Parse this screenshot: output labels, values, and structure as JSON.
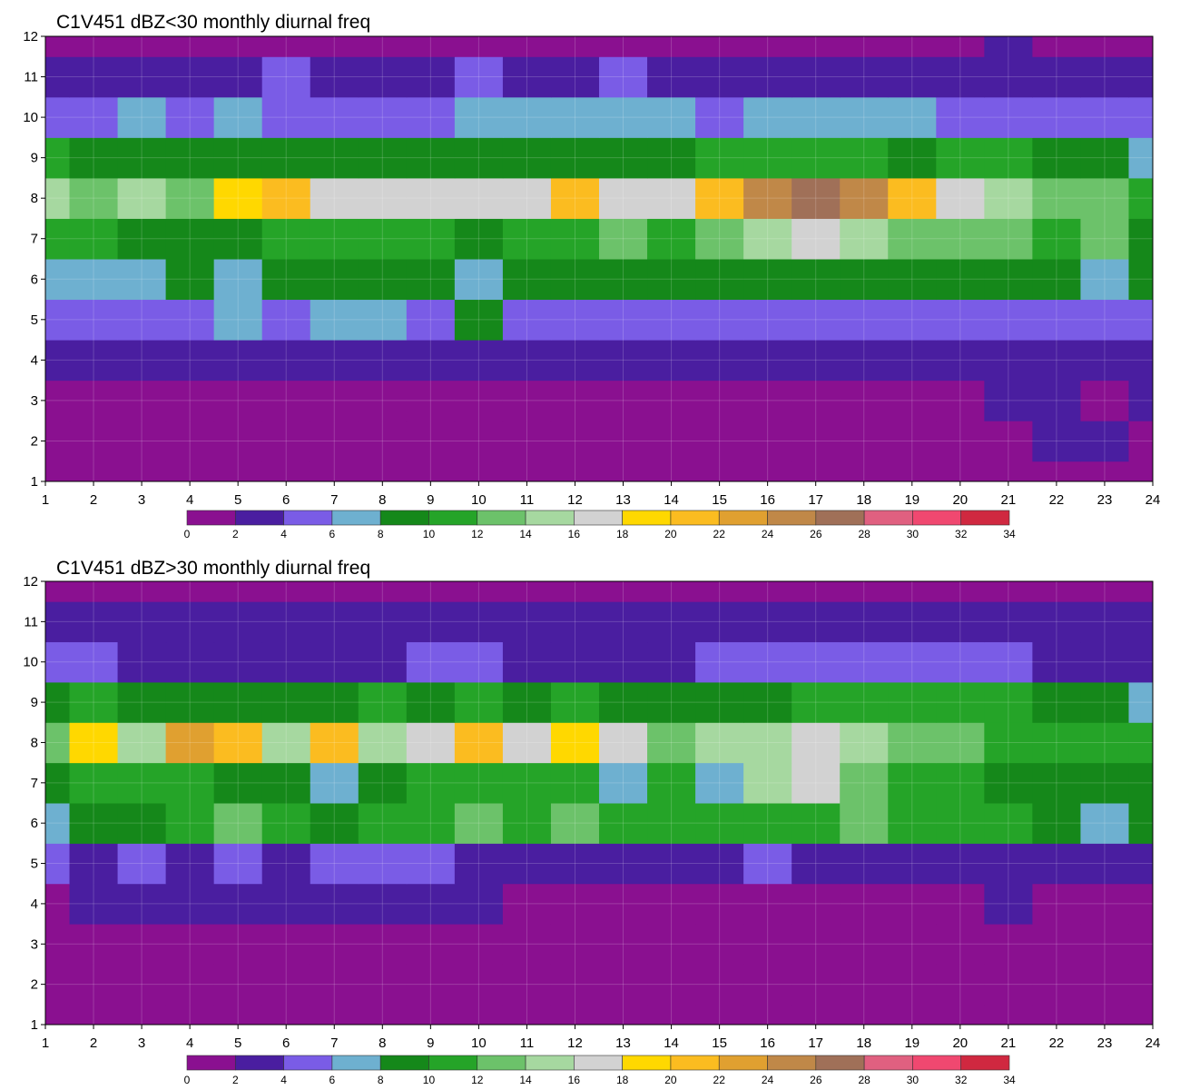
{
  "chart_data": [
    {
      "type": "heatmap",
      "title": "C1V451 dBZ<30 monthly diurnal freq",
      "xlabel": "",
      "ylabel": "",
      "x_ticks": [
        1,
        2,
        3,
        4,
        5,
        6,
        7,
        8,
        9,
        10,
        11,
        12,
        13,
        14,
        15,
        16,
        17,
        18,
        19,
        20,
        21,
        22,
        23,
        24
      ],
      "y_ticks": [
        1,
        2,
        3,
        4,
        5,
        6,
        7,
        8,
        9,
        10,
        11,
        12
      ],
      "xlim": [
        1,
        24
      ],
      "ylim": [
        1,
        12
      ],
      "grid": true,
      "colorbar": {
        "levels": [
          0,
          2,
          4,
          6,
          8,
          10,
          12,
          14,
          16,
          18,
          20,
          22,
          24,
          26,
          28,
          30,
          32,
          34
        ],
        "colors": [
          "#8a1090",
          "#4a1ea0",
          "#7a5ce6",
          "#6eb0d0",
          "#15881a",
          "#25a428",
          "#6cc26a",
          "#a6d8a0",
          "#d2d2d2",
          "#ffd800",
          "#fbbc20",
          "#e0a030",
          "#c08848",
          "#a07058",
          "#e06080",
          "#f04870",
          "#d02840"
        ]
      },
      "values": [
        [
          0,
          0,
          0,
          0,
          0,
          0,
          0,
          0,
          0,
          0,
          0,
          0,
          0,
          0,
          0,
          0,
          0,
          0,
          0,
          0,
          0,
          0,
          0,
          0
        ],
        [
          1,
          0,
          0,
          0,
          0,
          1,
          0,
          0,
          0,
          0,
          0,
          0,
          0,
          1,
          0,
          0,
          0,
          0,
          0,
          0,
          1,
          2,
          2,
          1
        ],
        [
          0,
          1,
          0,
          0,
          1,
          1,
          1,
          1,
          0,
          1,
          1,
          0,
          1,
          1,
          1,
          1,
          0,
          1,
          1,
          1,
          3,
          3,
          1,
          3
        ],
        [
          2,
          3,
          2,
          2,
          2,
          2,
          3,
          3,
          2,
          2,
          3,
          2,
          3,
          2,
          3,
          3,
          3,
          3,
          2,
          3,
          3,
          3,
          3,
          3
        ],
        [
          4,
          4,
          5,
          5,
          6,
          5,
          6,
          6,
          5,
          8,
          5,
          5,
          5,
          5,
          5,
          5,
          5,
          5,
          4,
          5,
          5,
          5,
          4,
          5
        ],
        [
          7,
          7,
          6,
          8,
          6,
          8,
          8,
          9,
          9,
          7,
          9,
          9,
          9,
          8,
          8,
          9,
          9,
          9,
          9,
          9,
          8,
          8,
          7,
          8
        ],
        [
          11,
          10,
          8,
          8,
          9,
          10,
          11,
          10,
          10,
          8,
          10,
          10,
          12,
          10,
          12,
          14,
          16,
          14,
          13,
          13,
          12,
          11,
          12,
          9
        ],
        [
          14,
          12,
          15,
          13,
          18,
          20,
          16,
          16,
          16,
          17,
          17,
          20,
          17,
          16,
          20,
          24,
          26,
          24,
          21,
          16,
          14,
          13,
          12,
          10
        ],
        [
          11,
          9,
          8,
          9,
          8,
          8,
          8,
          8,
          8,
          9,
          9,
          9,
          8,
          9,
          10,
          11,
          11,
          11,
          9,
          11,
          11,
          9,
          8,
          7
        ],
        [
          5,
          5,
          6,
          5,
          7,
          5,
          4,
          4,
          5,
          6,
          6,
          6,
          6,
          6,
          5,
          6,
          6,
          6,
          6,
          5,
          5,
          5,
          5,
          4
        ],
        [
          3,
          3,
          3,
          3,
          3,
          4,
          3,
          3,
          3,
          4,
          3,
          3,
          4,
          3,
          3,
          3,
          3,
          2,
          3,
          2,
          2,
          2,
          2,
          2
        ],
        [
          0,
          0,
          0,
          0,
          0,
          1,
          1,
          1,
          1,
          1,
          1,
          0,
          1,
          1,
          1,
          1,
          1,
          0,
          0,
          1,
          2,
          1,
          1,
          1
        ]
      ]
    },
    {
      "type": "heatmap",
      "title": "C1V451 dBZ>30 monthly diurnal freq",
      "xlabel": "",
      "ylabel": "",
      "x_ticks": [
        1,
        2,
        3,
        4,
        5,
        6,
        7,
        8,
        9,
        10,
        11,
        12,
        13,
        14,
        15,
        16,
        17,
        18,
        19,
        20,
        21,
        22,
        23,
        24
      ],
      "y_ticks": [
        1,
        2,
        3,
        4,
        5,
        6,
        7,
        8,
        9,
        10,
        11,
        12
      ],
      "xlim": [
        1,
        24
      ],
      "ylim": [
        1,
        12
      ],
      "grid": true,
      "colorbar": {
        "levels": [
          0,
          2,
          4,
          6,
          8,
          10,
          12,
          14,
          16,
          18,
          20,
          22,
          24,
          26,
          28,
          30,
          32,
          34
        ],
        "colors": [
          "#8a1090",
          "#4a1ea0",
          "#7a5ce6",
          "#6eb0d0",
          "#15881a",
          "#25a428",
          "#6cc26a",
          "#a6d8a0",
          "#d2d2d2",
          "#ffd800",
          "#fbbc20",
          "#e0a030",
          "#c08848",
          "#a07058",
          "#e06080",
          "#f04870",
          "#d02840"
        ]
      },
      "values": [
        [
          0,
          0,
          0,
          0,
          0,
          0,
          0,
          0,
          0,
          0,
          0,
          0,
          0,
          0,
          0,
          0,
          0,
          0,
          0,
          0,
          0,
          0,
          0,
          0
        ],
        [
          0,
          0,
          0,
          0,
          0,
          0,
          0,
          0,
          0,
          0,
          0,
          0,
          0,
          0,
          0,
          0,
          0,
          0,
          0,
          0,
          0,
          0,
          0,
          0
        ],
        [
          0,
          0,
          0,
          0,
          0,
          0,
          0,
          0,
          0,
          0,
          0,
          0,
          0,
          0,
          0,
          0,
          0,
          0,
          0,
          1,
          1,
          1,
          0,
          0
        ],
        [
          1,
          2,
          3,
          3,
          3,
          3,
          3,
          3,
          3,
          2,
          1,
          1,
          0,
          1,
          1,
          1,
          1,
          1,
          1,
          1,
          2,
          1,
          1,
          1
        ],
        [
          4,
          3,
          4,
          3,
          4,
          3,
          4,
          5,
          4,
          3,
          3,
          3,
          2,
          3,
          3,
          4,
          3,
          2,
          2,
          3,
          3,
          3,
          2,
          3
        ],
        [
          6,
          9,
          9,
          10,
          13,
          10,
          9,
          11,
          10,
          13,
          10,
          12,
          10,
          10,
          10,
          11,
          11,
          13,
          11,
          10,
          10,
          8,
          6,
          8
        ],
        [
          8,
          11,
          10,
          10,
          9,
          9,
          7,
          9,
          11,
          10,
          11,
          10,
          7,
          10,
          7,
          14,
          17,
          12,
          10,
          10,
          9,
          9,
          9,
          8
        ],
        [
          12,
          18,
          14,
          22,
          20,
          14,
          20,
          14,
          16,
          20,
          16,
          18,
          16,
          12,
          14,
          15,
          16,
          14,
          13,
          12,
          10,
          10,
          10,
          10
        ],
        [
          8,
          10,
          8,
          9,
          9,
          9,
          9,
          10,
          9,
          10,
          9,
          10,
          9,
          8,
          9,
          9,
          10,
          10,
          10,
          10,
          10,
          8,
          8,
          7
        ],
        [
          5,
          4,
          3,
          3,
          3,
          3,
          3,
          3,
          5,
          4,
          3,
          3,
          3,
          3,
          4,
          4,
          4,
          4,
          4,
          4,
          4,
          3,
          3,
          3
        ],
        [
          2,
          2,
          2,
          2,
          2,
          2,
          2,
          2,
          2,
          2,
          2,
          2,
          2,
          2,
          2,
          2,
          2,
          2,
          2,
          2,
          2,
          2,
          2,
          2
        ],
        [
          0,
          0,
          0,
          0,
          0,
          0,
          0,
          0,
          0,
          0,
          0,
          0,
          0,
          0,
          0,
          0,
          0,
          0,
          0,
          0,
          0,
          0,
          0,
          0
        ]
      ]
    }
  ]
}
